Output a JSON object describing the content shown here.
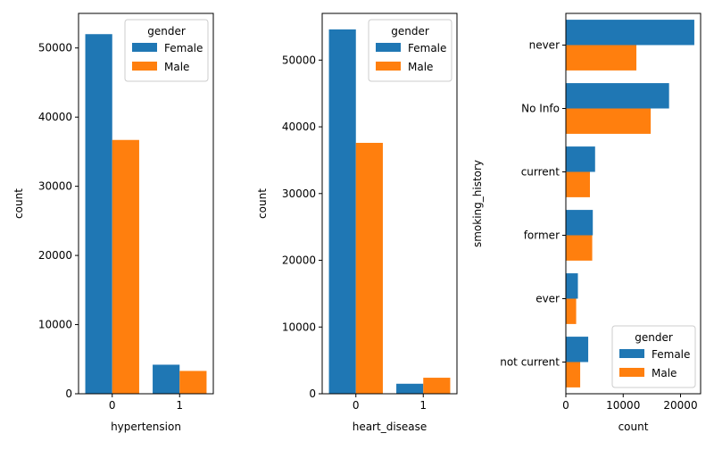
{
  "colors": {
    "Female": "#1f77b4",
    "Male": "#ff7f0e"
  },
  "chart_data": [
    {
      "type": "bar",
      "orientation": "vertical",
      "xlabel": "hypertension",
      "ylabel": "count",
      "categories": [
        "0",
        "1"
      ],
      "ylim": [
        0,
        55000
      ],
      "yticks": [
        0,
        10000,
        20000,
        30000,
        40000,
        50000
      ],
      "series": [
        {
          "name": "Female",
          "values": [
            52000,
            4200
          ]
        },
        {
          "name": "Male",
          "values": [
            36700,
            3300
          ]
        }
      ],
      "legend": {
        "title": "gender",
        "position": "top-right"
      }
    },
    {
      "type": "bar",
      "orientation": "vertical",
      "xlabel": "heart_disease",
      "ylabel": "count",
      "categories": [
        "0",
        "1"
      ],
      "ylim": [
        0,
        57000
      ],
      "yticks": [
        0,
        10000,
        20000,
        30000,
        40000,
        50000
      ],
      "series": [
        {
          "name": "Female",
          "values": [
            54600,
            1500
          ]
        },
        {
          "name": "Male",
          "values": [
            37600,
            2400
          ]
        }
      ],
      "legend": {
        "title": "gender",
        "position": "top-right"
      }
    },
    {
      "type": "bar",
      "orientation": "horizontal",
      "xlabel": "count",
      "ylabel": "smoking_history",
      "categories": [
        "never",
        "No Info",
        "current",
        "former",
        "ever",
        "not current"
      ],
      "xlim": [
        0,
        23500
      ],
      "xticks": [
        0,
        10000,
        20000
      ],
      "series": [
        {
          "name": "Female",
          "values": [
            22400,
            18000,
            5100,
            4700,
            2100,
            3900
          ]
        },
        {
          "name": "Male",
          "values": [
            12300,
            14800,
            4200,
            4600,
            1800,
            2500
          ]
        }
      ],
      "legend": {
        "title": "gender",
        "position": "bottom-right"
      }
    }
  ]
}
